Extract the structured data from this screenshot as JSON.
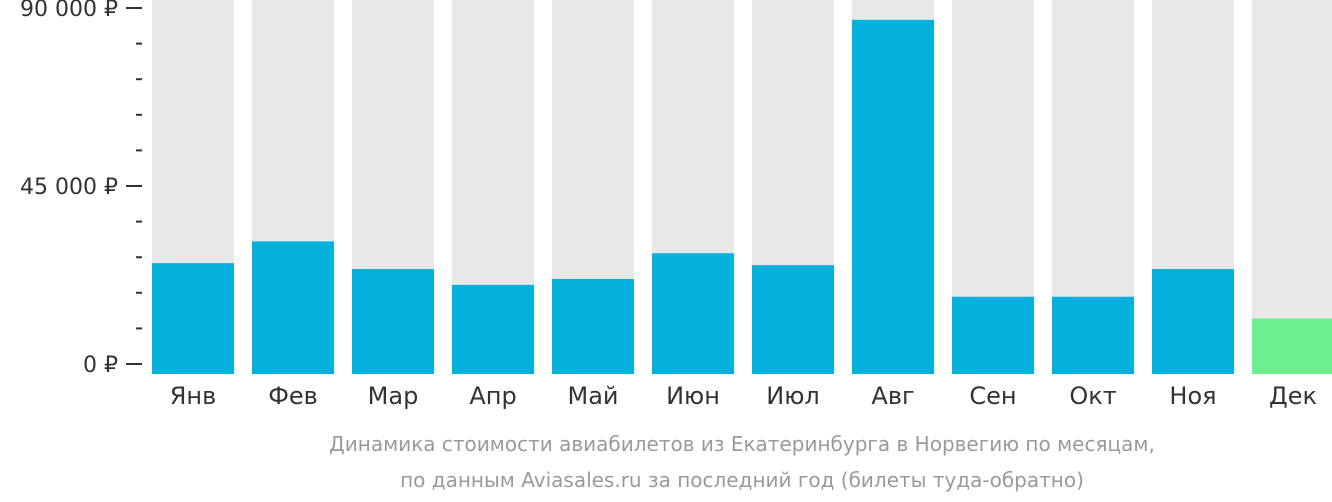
{
  "chart_data": {
    "type": "bar",
    "categories": [
      "Янв",
      "Фев",
      "Мар",
      "Апр",
      "Май",
      "Июн",
      "Июл",
      "Авг",
      "Сен",
      "Окт",
      "Ноя",
      "Дек"
    ],
    "values": [
      25500,
      31000,
      24000,
      20000,
      21500,
      28000,
      25000,
      87000,
      17000,
      17000,
      24000,
      11500
    ],
    "ylim": [
      0,
      90000
    ],
    "yticks": [
      {
        "value": 0,
        "label": "0 ₽"
      },
      {
        "value": 45000,
        "label": "45 000 ₽"
      },
      {
        "value": 90000,
        "label": "90 000 ₽"
      }
    ],
    "minor_tick_step": 9000,
    "highlight_index": 11,
    "colors": {
      "bar": "#03b1dc",
      "highlight": "#6eef8d",
      "track": "#e8e8e8",
      "axis": "#333333"
    },
    "caption_line1": "Динамика стоимости авиабилетов из Екатеринбурга в Норвегию по месяцам,",
    "caption_line2": "по данным Aviasales.ru за последний год (билеты туда-обратно)"
  }
}
